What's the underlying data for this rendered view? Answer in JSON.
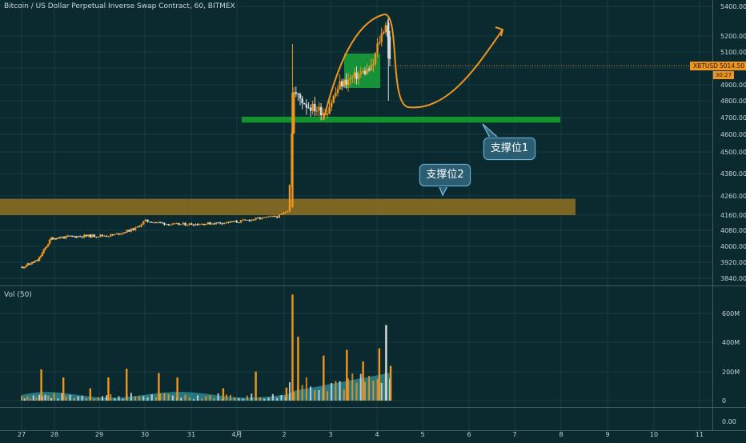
{
  "header": {
    "title": "Bitcoin / US Dollar Perpetual Inverse Swap Contract, 60, BITMEX",
    "volume_title": "Vol (50)"
  },
  "price_axis": {
    "ticks": [
      "5400.00",
      "5200.00",
      "5100.00",
      "5000.00",
      "4900.00",
      "4800.00",
      "4700.00",
      "4600.00",
      "4500.00",
      "4380.00",
      "4260.00",
      "4160.00",
      "4080.00",
      "4000.00",
      "3920.00",
      "3840.00"
    ]
  },
  "volume_axis": {
    "ticks": [
      "600M",
      "400M",
      "200M",
      "0"
    ]
  },
  "lower_axis": {
    "ticks": [
      "0.00"
    ]
  },
  "time_axis": {
    "ticks": [
      "27",
      "28",
      "29",
      "30",
      "31",
      "4月",
      "2",
      "3",
      "4",
      "5",
      "6",
      "7",
      "8",
      "9",
      "10",
      "11"
    ]
  },
  "price_badge": {
    "symbol": "XBTUSD",
    "value": "5014.50",
    "timer": "30:27"
  },
  "annotations": {
    "support1": "支撑位1",
    "support2": "支撑位2"
  },
  "colors": {
    "background": "#0b2a30",
    "up_candle": "#f0951e",
    "down_candle": "#d8dde0",
    "support1_zone": "#13922d",
    "support2_zone": "#8a6d24",
    "highlight_box": "#18a33a",
    "forecast_line": "#f0951e",
    "volume_area": "#3fb6c4"
  },
  "chart_data": [
    {
      "type": "candlestick",
      "title": "Bitcoin / US Dollar Perpetual Inverse Swap Contract, 60, BITMEX",
      "x_ticks": [
        "27",
        "28",
        "29",
        "30",
        "31",
        "4月",
        "2",
        "3",
        "4",
        "5",
        "6",
        "7",
        "8",
        "9",
        "10",
        "11"
      ],
      "ylim": [
        3800,
        5450
      ],
      "close_path": [
        {
          "x": 0,
          "close": 3895
        },
        {
          "x": 0.5,
          "close": 3930
        },
        {
          "x": 0.9,
          "close": 4040
        },
        {
          "x": 1.5,
          "close": 4050
        },
        {
          "x": 2.3,
          "close": 4055
        },
        {
          "x": 2.8,
          "close": 4090
        },
        {
          "x": 3.0,
          "close": 4130
        },
        {
          "x": 3.6,
          "close": 4110
        },
        {
          "x": 4.3,
          "close": 4115
        },
        {
          "x": 5.0,
          "close": 4125
        },
        {
          "x": 5.4,
          "close": 4140
        },
        {
          "x": 5.9,
          "close": 4155
        },
        {
          "x": 6.1,
          "close": 4190
        },
        {
          "x": 6.2,
          "close": 4855
        },
        {
          "x": 6.5,
          "close": 4770
        },
        {
          "x": 6.9,
          "close": 4730
        },
        {
          "x": 7.2,
          "close": 4900
        },
        {
          "x": 7.6,
          "close": 4960
        },
        {
          "x": 7.9,
          "close": 5000
        },
        {
          "x": 8.0,
          "close": 5130
        },
        {
          "x": 8.2,
          "close": 5290
        },
        {
          "x": 8.3,
          "close": 5014.5
        }
      ],
      "last_price": 5014.5,
      "support_zones": [
        {
          "label": "支撑位1",
          "from": 4670,
          "to": 4705
        },
        {
          "label": "支撑位2",
          "from": 4160,
          "to": 4245
        }
      ]
    },
    {
      "type": "bar",
      "title": "Vol (50)",
      "ylim": [
        0,
        750
      ],
      "unit": "M",
      "volumes": [
        {
          "x": 0.6,
          "v": 215
        },
        {
          "x": 1.2,
          "v": 160
        },
        {
          "x": 1.8,
          "v": 85
        },
        {
          "x": 2.2,
          "v": 160
        },
        {
          "x": 2.6,
          "v": 220
        },
        {
          "x": 3.3,
          "v": 190
        },
        {
          "x": 3.7,
          "v": 160
        },
        {
          "x": 4.7,
          "v": 85
        },
        {
          "x": 5.4,
          "v": 200
        },
        {
          "x": 6.05,
          "v": 90
        },
        {
          "x": 6.18,
          "v": 730
        },
        {
          "x": 6.3,
          "v": 440
        },
        {
          "x": 6.85,
          "v": 310
        },
        {
          "x": 7.35,
          "v": 350
        },
        {
          "x": 7.7,
          "v": 270
        },
        {
          "x": 8.05,
          "v": 360
        },
        {
          "x": 8.2,
          "v": 520
        },
        {
          "x": 8.3,
          "v": 240
        }
      ]
    }
  ]
}
